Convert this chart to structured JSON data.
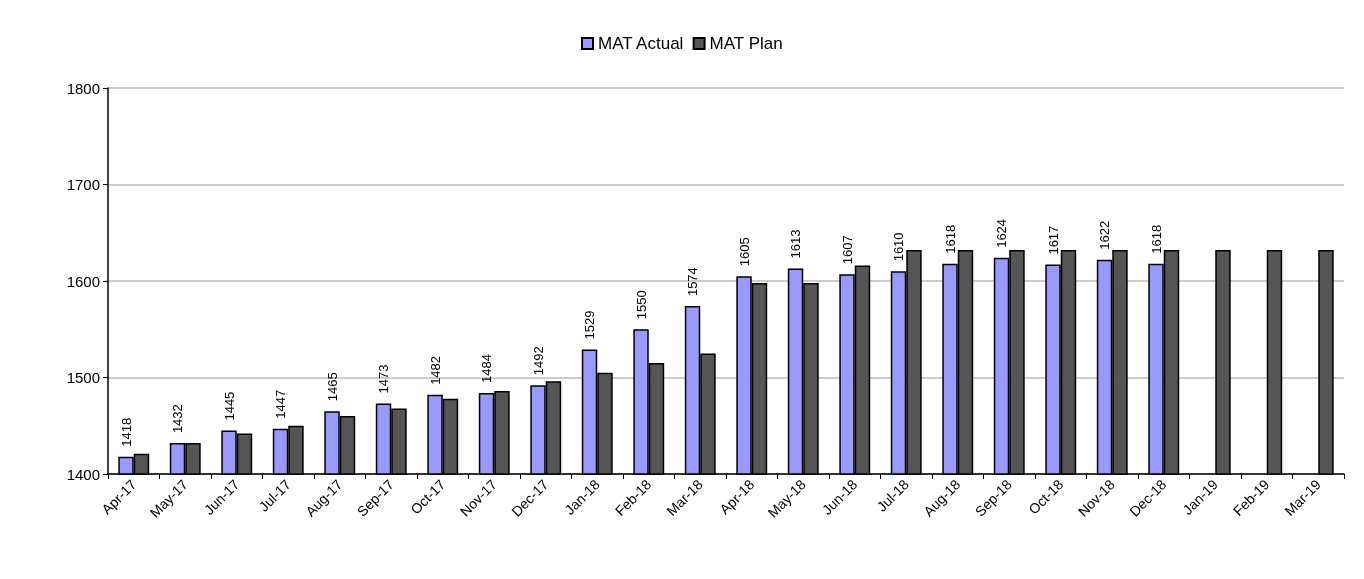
{
  "chart_data": {
    "type": "bar",
    "categories": [
      "Apr-17",
      "May-17",
      "Jun-17",
      "Jul-17",
      "Aug-17",
      "Sep-17",
      "Oct-17",
      "Nov-17",
      "Dec-17",
      "Jan-18",
      "Feb-18",
      "Mar-18",
      "Apr-18",
      "May-18",
      "Jun-18",
      "Jul-18",
      "Aug-18",
      "Sep-18",
      "Oct-18",
      "Nov-18",
      "Dec-18",
      "Jan-19",
      "Feb-19",
      "Mar-19"
    ],
    "series": [
      {
        "name": "MAT Actual",
        "color": "#9999ff",
        "values": [
          1418,
          1432,
          1445,
          1447,
          1465,
          1473,
          1482,
          1484,
          1492,
          1529,
          1550,
          1574,
          1605,
          1613,
          1607,
          1610,
          1618,
          1624,
          1617,
          1622,
          1618,
          null,
          null,
          null
        ],
        "value_labels": [
          "1418",
          "1432",
          "1445",
          "1447",
          "1465",
          "1473",
          "1482",
          "1484",
          "1492",
          "1529",
          "1550",
          "1574",
          "1605",
          "1613",
          "1607",
          "1610",
          "1618",
          "1624",
          "1617",
          "1622",
          "1618",
          null,
          null,
          null
        ]
      },
      {
        "name": "MAT Plan",
        "color": "#555555",
        "values": [
          1421,
          1432,
          1442,
          1450,
          1460,
          1468,
          1478,
          1486,
          1496,
          1505,
          1515,
          1525,
          1598,
          1598,
          1616,
          1632,
          1632,
          1632,
          1632,
          1632,
          1632,
          1632,
          1632,
          1632
        ]
      }
    ],
    "ylim": [
      1400,
      1800
    ],
    "yticks": [
      1400,
      1500,
      1600,
      1700,
      1800
    ],
    "grid": "y",
    "legend": "top"
  }
}
